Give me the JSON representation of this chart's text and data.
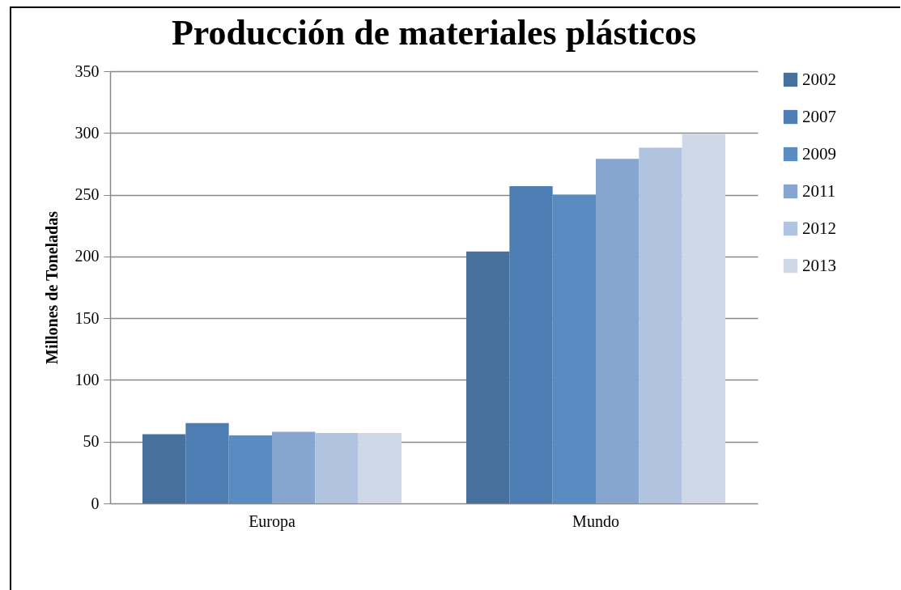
{
  "chart_data": {
    "type": "bar",
    "title": "Producción de materiales plásticos",
    "ylabel": "Millones de Toneladas",
    "categories": [
      "Europa",
      "Mundo"
    ],
    "series": [
      {
        "name": "2002",
        "color": "#46719c",
        "values": [
          56,
          204
        ]
      },
      {
        "name": "2007",
        "color": "#4d7db2",
        "values": [
          65,
          257
        ]
      },
      {
        "name": "2009",
        "color": "#5a8cc2",
        "values": [
          55,
          250
        ]
      },
      {
        "name": "2011",
        "color": "#86a5cf",
        "values": [
          58,
          279
        ]
      },
      {
        "name": "2012",
        "color": "#b0c3df",
        "values": [
          57,
          288
        ]
      },
      {
        "name": "2013",
        "color": "#cfd8e7",
        "values": [
          57,
          299
        ]
      }
    ],
    "ylim": [
      0,
      350
    ],
    "yticks": [
      0,
      50,
      100,
      150,
      200,
      250,
      300,
      350
    ],
    "grid": "y",
    "legend": "right"
  }
}
